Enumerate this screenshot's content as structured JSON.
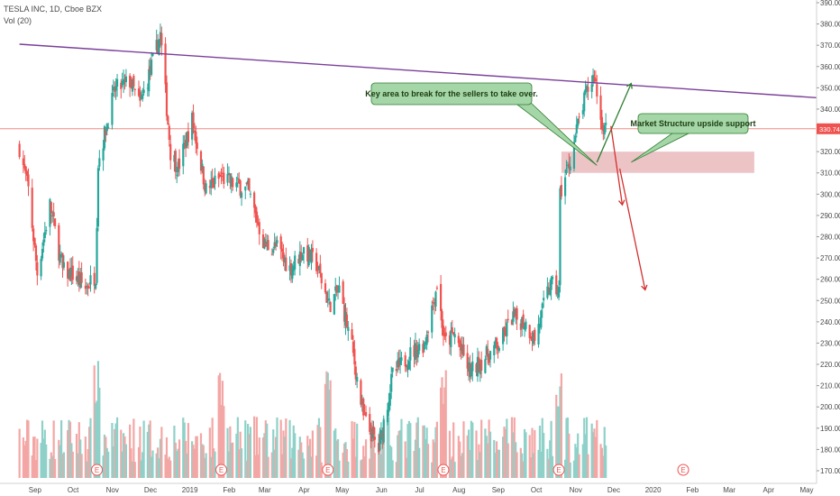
{
  "header": {
    "symbol_line": "TESLA INC, 1D, Cboe BZX",
    "volume_line": "Vol (20)"
  },
  "price_axis": {
    "ticks": [
      "390.00",
      "380.00",
      "370.00",
      "360.00",
      "350.00",
      "340.00",
      "330.00",
      "320.00",
      "310.00",
      "300.00",
      "290.00",
      "280.00",
      "270.00",
      "260.00",
      "250.00",
      "240.00",
      "230.00",
      "220.00",
      "210.00",
      "200.00",
      "190.00",
      "180.00",
      "170.00"
    ],
    "current_price_label": "330.74"
  },
  "time_axis": {
    "labels": [
      "Sep",
      "Oct",
      "Nov",
      "Dec",
      "2019",
      "Feb",
      "Mar",
      "Apr",
      "May",
      "Jun",
      "Jul",
      "Aug",
      "Sep",
      "Oct",
      "Nov",
      "Dec",
      "2020",
      "Feb",
      "Mar",
      "Apr",
      "May"
    ]
  },
  "annotations": {
    "key_area_note": "Key area to break for the sellers to take over.",
    "structure_note": "Market Structure upside support",
    "earnings_marker": "E"
  },
  "colors": {
    "up": "#26a69a",
    "down": "#ef5350",
    "up_volume": "#8fd1c9",
    "down_volume": "#f3a7a5",
    "trendline": "#7b3f98",
    "current_price_line": "#f28b82",
    "support_zone": "#e6b0b3",
    "callout_fill": "#a5d6a7",
    "callout_border": "#2e7d32",
    "green_arrow": "#2e7d32",
    "red_arrow": "#d32f2f",
    "axis_text": "#4a4a4a"
  },
  "chart_data": {
    "type": "candlestick",
    "title": "TESLA INC, 1D, Cboe BZX",
    "xlabel": "",
    "ylabel": "",
    "ylim": [
      165,
      392
    ],
    "grid": false,
    "current_price": 330.74,
    "trendline": {
      "start": [
        "2018-08-24",
        370.5
      ],
      "end": [
        "2020-05-22",
        345
      ]
    },
    "support_zone": {
      "from": "2019-10-25",
      "to": "2020-03-25",
      "low": 310,
      "high": 320
    },
    "earnings_dates": [
      "2018-10-24",
      "2019-01-30",
      "2019-04-24",
      "2019-07-24",
      "2019-10-23",
      "2020-01-29"
    ],
    "projection_paths": [
      {
        "color": "green",
        "points": [
          [
            "2019-11-22",
            315
          ],
          [
            "2019-12-19",
            352
          ]
        ]
      },
      {
        "color": "red",
        "points": [
          [
            "2019-12-03",
            332
          ],
          [
            "2019-12-12",
            295
          ]
        ]
      },
      {
        "color": "red",
        "points": [
          [
            "2019-12-10",
            312
          ],
          [
            "2019-12-30",
            255
          ]
        ]
      }
    ],
    "anchors": [
      {
        "date": "2018-08-24",
        "price": 322
      },
      {
        "date": "2018-08-31",
        "price": 302
      },
      {
        "date": "2018-09-07",
        "price": 263
      },
      {
        "date": "2018-09-17",
        "price": 295
      },
      {
        "date": "2018-09-27",
        "price": 264
      },
      {
        "date": "2018-10-05",
        "price": 262
      },
      {
        "date": "2018-10-15",
        "price": 256
      },
      {
        "date": "2018-10-23",
        "price": 262
      },
      {
        "date": "2018-10-25",
        "price": 315
      },
      {
        "date": "2018-11-07",
        "price": 349
      },
      {
        "date": "2018-11-19",
        "price": 353
      },
      {
        "date": "2018-11-27",
        "price": 342
      },
      {
        "date": "2018-12-06",
        "price": 360
      },
      {
        "date": "2018-12-13",
        "price": 375
      },
      {
        "date": "2018-12-21",
        "price": 320
      },
      {
        "date": "2018-12-27",
        "price": 312
      },
      {
        "date": "2019-01-07",
        "price": 335
      },
      {
        "date": "2019-01-18",
        "price": 302
      },
      {
        "date": "2019-01-30",
        "price": 308
      },
      {
        "date": "2019-02-08",
        "price": 305
      },
      {
        "date": "2019-02-20",
        "price": 302
      },
      {
        "date": "2019-03-05",
        "price": 276
      },
      {
        "date": "2019-03-15",
        "price": 275
      },
      {
        "date": "2019-03-25",
        "price": 265
      },
      {
        "date": "2019-04-05",
        "price": 274
      },
      {
        "date": "2019-04-15",
        "price": 267
      },
      {
        "date": "2019-04-25",
        "price": 248
      },
      {
        "date": "2019-05-03",
        "price": 255
      },
      {
        "date": "2019-05-13",
        "price": 228
      },
      {
        "date": "2019-05-22",
        "price": 195
      },
      {
        "date": "2019-06-03",
        "price": 180
      },
      {
        "date": "2019-06-14",
        "price": 215
      },
      {
        "date": "2019-06-28",
        "price": 225
      },
      {
        "date": "2019-07-09",
        "price": 230
      },
      {
        "date": "2019-07-19",
        "price": 258
      },
      {
        "date": "2019-07-25",
        "price": 230
      },
      {
        "date": "2019-08-02",
        "price": 234
      },
      {
        "date": "2019-08-14",
        "price": 216
      },
      {
        "date": "2019-08-27",
        "price": 224
      },
      {
        "date": "2019-09-06",
        "price": 229
      },
      {
        "date": "2019-09-16",
        "price": 242
      },
      {
        "date": "2019-09-26",
        "price": 240
      },
      {
        "date": "2019-10-04",
        "price": 232
      },
      {
        "date": "2019-10-16",
        "price": 258
      },
      {
        "date": "2019-10-23",
        "price": 254
      },
      {
        "date": "2019-10-24",
        "price": 300
      },
      {
        "date": "2019-10-31",
        "price": 314
      },
      {
        "date": "2019-11-08",
        "price": 335
      },
      {
        "date": "2019-11-14",
        "price": 348
      },
      {
        "date": "2019-11-20",
        "price": 356
      },
      {
        "date": "2019-11-25",
        "price": 335
      },
      {
        "date": "2019-11-29",
        "price": 330.74
      }
    ]
  }
}
